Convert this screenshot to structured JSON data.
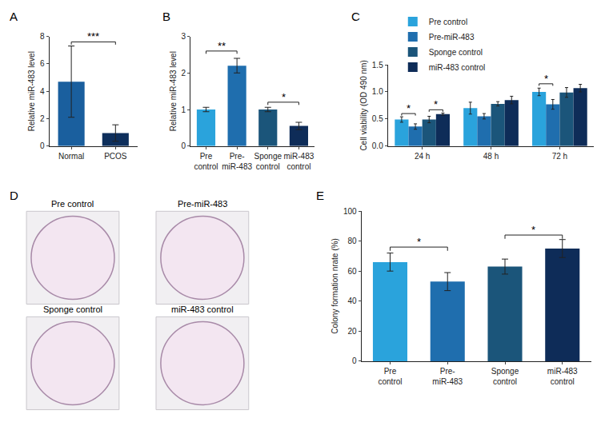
{
  "chart_data": [
    {
      "type": "bar",
      "title": "A",
      "y_label": "Relative miR-483 level",
      "categories": [
        "Normal",
        "PCOS"
      ],
      "values": [
        4.7,
        0.95
      ],
      "errors": [
        2.6,
        0.6
      ],
      "colors": [
        "#1a5f9e",
        "#0e2f5c"
      ],
      "ylim": [
        0,
        8
      ],
      "yticks": [
        0,
        2,
        4,
        6,
        8
      ],
      "grid": false,
      "significance": [
        {
          "between": [
            "Normal",
            "PCOS"
          ],
          "y": 7.6,
          "label": "***"
        }
      ]
    },
    {
      "type": "bar",
      "title": "B",
      "y_label": "Relative miR-483 level",
      "categories": [
        "Pre control",
        "Pre-miR-483",
        "Sponge control",
        "miR-483 control"
      ],
      "values": [
        1.0,
        2.2,
        1.0,
        0.55
      ],
      "errors": [
        0.06,
        0.2,
        0.06,
        0.1
      ],
      "colors": [
        "#2aa3dc",
        "#1f6eae",
        "#1b557a",
        "#0e2c58"
      ],
      "ylim": [
        0,
        3
      ],
      "yticks": [
        0,
        1,
        2,
        3
      ],
      "grid": false,
      "significance": [
        {
          "between": [
            "Pre control",
            "Pre-miR-483"
          ],
          "y": 2.6,
          "label": "**"
        },
        {
          "between": [
            "Sponge control",
            "miR-483 control"
          ],
          "y": 1.2,
          "label": "*"
        }
      ]
    },
    {
      "type": "bar",
      "title": "C",
      "y_label": "Cell viability (OD 490 nm)",
      "categories": [
        "24 h",
        "48 h",
        "72 h"
      ],
      "series": [
        {
          "name": "Pre control",
          "color": "#2aa3dc",
          "values": [
            0.49,
            0.7,
            1.0
          ],
          "errors": [
            0.05,
            0.11,
            0.07
          ]
        },
        {
          "name": "Pre-miR-483",
          "color": "#1f6eae",
          "values": [
            0.36,
            0.55,
            0.77
          ],
          "errors": [
            0.05,
            0.05,
            0.09
          ]
        },
        {
          "name": "Sponge control",
          "color": "#1b557a",
          "values": [
            0.49,
            0.78,
            0.99
          ],
          "errors": [
            0.06,
            0.04,
            0.09
          ]
        },
        {
          "name": "miR-483 control",
          "color": "#0e2c58",
          "values": [
            0.59,
            0.85,
            1.07
          ],
          "errors": [
            0.02,
            0.07,
            0.07
          ]
        }
      ],
      "ylim": [
        0,
        1.5
      ],
      "yticks": [
        {
          "value": 0,
          "label": "0.0"
        },
        0.5,
        {
          "value": 1,
          "label": "1.0"
        },
        1.5
      ],
      "grid": false,
      "legend": "top",
      "significance": [
        {
          "category": "24 h",
          "between": [
            "Pre control",
            "Pre-miR-483"
          ],
          "y": 0.6,
          "label": "*"
        },
        {
          "category": "24 h",
          "between": [
            "Sponge control",
            "miR-483 control"
          ],
          "y": 0.67,
          "label": "*"
        },
        {
          "category": "72 h",
          "between": [
            "Pre control",
            "Pre-miR-483"
          ],
          "y": 1.15,
          "label": "*"
        }
      ]
    },
    {
      "type": "image",
      "title": "D",
      "labels": [
        "Pre control",
        "Pre-miR-483",
        "Sponge control",
        "miR-483 control"
      ]
    },
    {
      "type": "bar",
      "title": "E",
      "y_label": "Colony formation nrate (%)",
      "categories": [
        "Pre control",
        "Pre-miR-483",
        "Sponge control",
        "miR-483 control"
      ],
      "values": [
        66,
        53,
        63,
        75
      ],
      "errors": [
        6,
        6,
        5,
        6
      ],
      "colors": [
        "#2aa3dc",
        "#1f6eae",
        "#1b557a",
        "#0e2c58"
      ],
      "ylim": [
        0,
        100
      ],
      "yticks": [
        0,
        20,
        40,
        60,
        80,
        100
      ],
      "grid": false,
      "significance": [
        {
          "between": [
            "Pre control",
            "Pre-miR-483"
          ],
          "y": 76,
          "label": "*"
        },
        {
          "between": [
            "Sponge control",
            "miR-483 control"
          ],
          "y": 84,
          "label": "*"
        }
      ]
    }
  ]
}
